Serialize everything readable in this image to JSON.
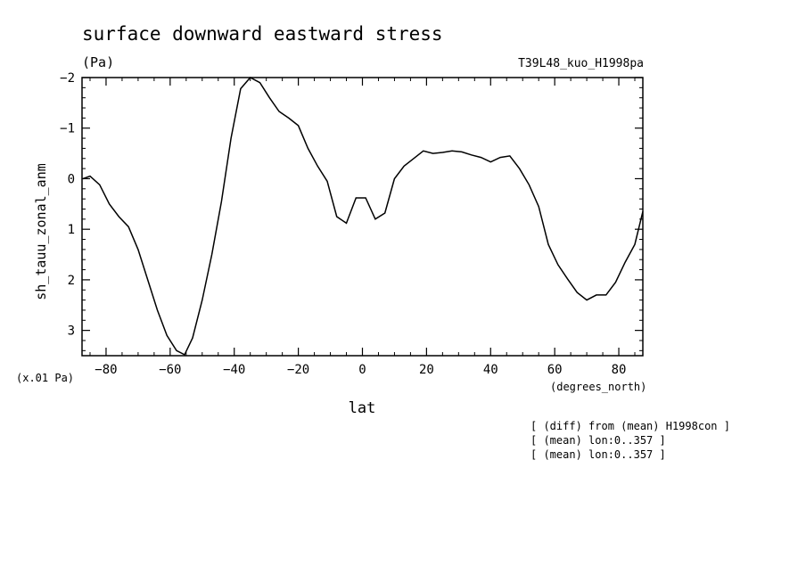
{
  "chart_data": {
    "type": "line",
    "title": "surface downward eastward stress",
    "units": "(Pa)",
    "run_label": "T39L48_kuo_H1998pa",
    "ylabel": "sh_tauu_zonal_anm",
    "y_scale_note": "(x.01 Pa)",
    "xlabel": "lat",
    "x_units": "(degrees_north)",
    "xlim": [
      -87.5,
      87.5
    ],
    "ylim": [
      3.5,
      -2
    ],
    "y_inverted": true,
    "x_ticks": [
      -80,
      -60,
      -40,
      -20,
      0,
      20,
      40,
      60,
      80
    ],
    "x_tick_labels": [
      "−80",
      "−60",
      "−40",
      "−20",
      "0",
      "20",
      "40",
      "60",
      "80"
    ],
    "y_ticks": [
      -2,
      -1,
      0,
      1,
      2,
      3
    ],
    "y_tick_labels": [
      "−2",
      "−1",
      "0",
      "1",
      "2",
      "3"
    ],
    "grid": false,
    "notes": [
      "[ (diff) from (mean) H1998con ]",
      "[ (mean) lon:0..357 ]",
      "[ (mean) lon:0..357 ]"
    ],
    "series": [
      {
        "x": [
          -87.2,
          -85,
          -82,
          -79,
          -76,
          -73,
          -70,
          -67,
          -64,
          -61,
          -58,
          -55.5,
          -53,
          -50,
          -47,
          -44,
          -41,
          -38,
          -35,
          -32,
          -29,
          -26,
          -23,
          -20,
          -17,
          -14,
          -11,
          -8,
          -5,
          -2,
          1,
          4,
          7,
          10,
          13,
          16,
          19,
          22,
          25,
          28,
          31,
          34,
          37,
          40,
          43,
          46,
          49,
          52,
          55,
          58,
          61,
          64,
          67,
          70,
          73,
          76,
          79,
          82,
          85,
          87.5
        ],
        "y": [
          0.0,
          -0.05,
          0.12,
          0.5,
          0.75,
          0.95,
          1.4,
          2.0,
          2.6,
          3.1,
          3.4,
          3.48,
          3.15,
          2.4,
          1.5,
          0.45,
          -0.8,
          -1.78,
          -2.0,
          -1.9,
          -1.6,
          -1.33,
          -1.2,
          -1.05,
          -0.6,
          -0.25,
          0.05,
          0.75,
          0.88,
          0.38,
          0.38,
          0.8,
          0.68,
          0.0,
          -0.25,
          -0.4,
          -0.55,
          -0.5,
          -0.52,
          -0.55,
          -0.53,
          -0.47,
          -0.42,
          -0.33,
          -0.42,
          -0.45,
          -0.2,
          0.12,
          0.55,
          1.3,
          1.7,
          1.98,
          2.25,
          2.4,
          2.3,
          2.3,
          2.05,
          1.65,
          1.3,
          0.65
        ]
      }
    ]
  }
}
